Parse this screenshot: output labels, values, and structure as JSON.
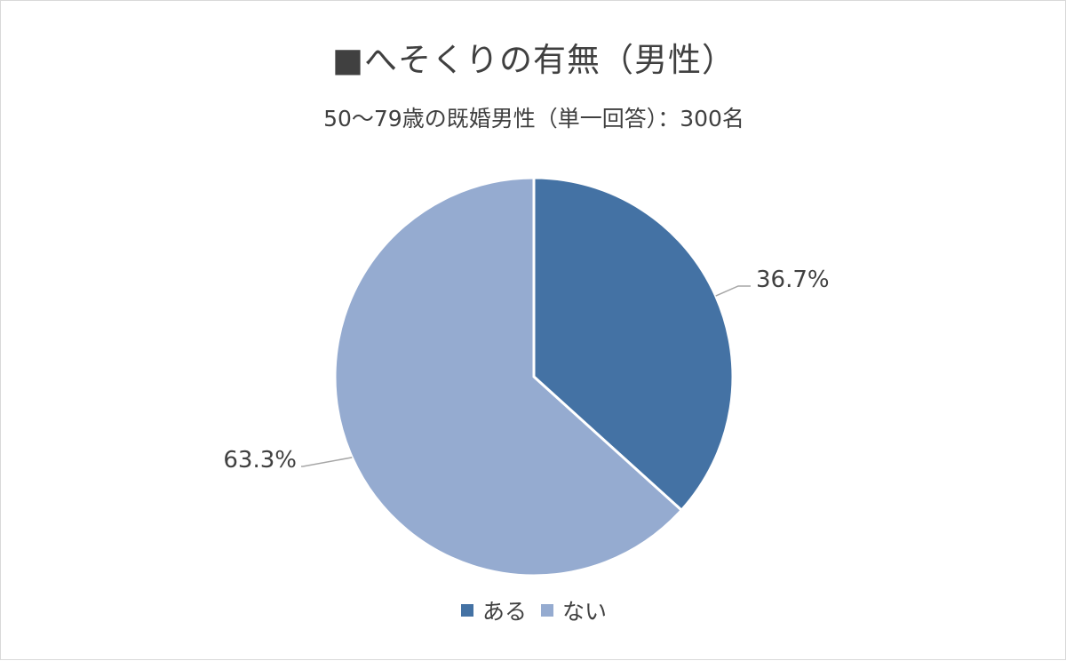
{
  "chart_data": {
    "type": "pie",
    "title": "■へそくりの有無（男性）",
    "subtitle": "50～79歳の既婚男性（単一回答）：300名",
    "categories": [
      "ある",
      "ない"
    ],
    "values": [
      36.7,
      63.3
    ],
    "data_labels": [
      "36.7%",
      "63.3%"
    ],
    "colors": [
      "#4472a4",
      "#95abd0"
    ],
    "legend_position": "bottom",
    "start_angle": "12 o'clock",
    "direction": "clockwise"
  }
}
